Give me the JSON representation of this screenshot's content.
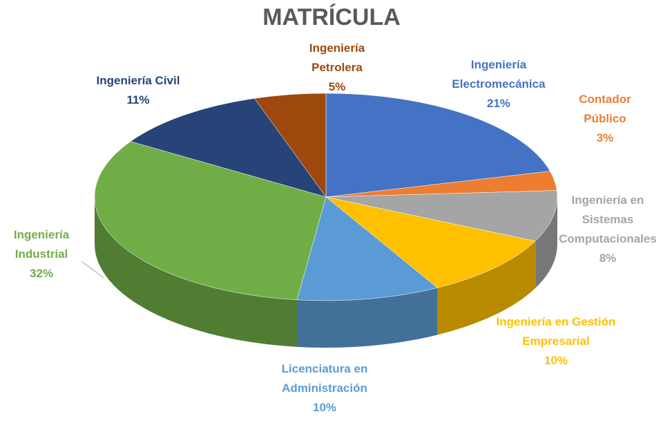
{
  "chart_data": {
    "type": "pie",
    "title": "MATRÍCULA",
    "categories": [
      "Ingeniería Electromecánica",
      "Contador Público",
      "Ingeniería en Sistemas Computacionales",
      "Ingeniería en Gestión Empresarial",
      "Licenciatura en Administración",
      "Ingeniería Industrial",
      "Ingeniería Civil",
      "Ingeniería Petrolera"
    ],
    "values": [
      21,
      3,
      8,
      10,
      10,
      32,
      11,
      5
    ],
    "value_labels": [
      "21%",
      "3%",
      "8%",
      "10%",
      "10%",
      "32%",
      "11%",
      "5%"
    ],
    "colors": [
      "#4472c4",
      "#ed7d31",
      "#a5a5a5",
      "#ffc000",
      "#5b9bd5",
      "#70ad47",
      "#264478",
      "#9e480e"
    ]
  }
}
